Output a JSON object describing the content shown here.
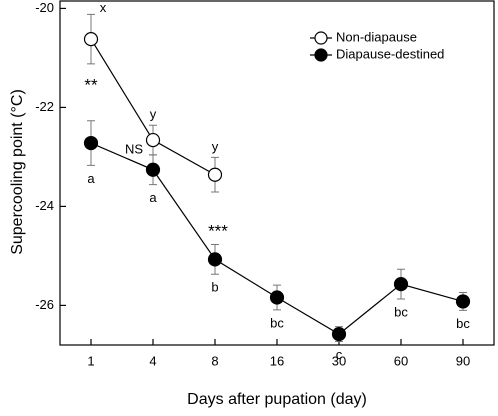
{
  "chart_data": {
    "type": "line",
    "x_label": "Days after pupation (day)",
    "y_label": "Supercooling point (°C)",
    "categories": [
      "1",
      "4",
      "8",
      "16",
      "30",
      "60",
      "90"
    ],
    "series": [
      {
        "name": "Non-diapause",
        "color": "#ffffff",
        "values": [
          -20.62,
          -22.66,
          -23.36,
          null,
          null,
          null,
          null
        ],
        "errors": [
          0.5,
          0.3,
          0.35,
          null,
          null,
          null,
          null
        ],
        "labels": [
          "x",
          "y",
          "y",
          null,
          null,
          null,
          null
        ]
      },
      {
        "name": "Diapause-destined",
        "color": "#000000",
        "values": [
          -22.72,
          -23.26,
          -25.07,
          -25.84,
          -26.58,
          -25.57,
          -25.92
        ],
        "errors": [
          0.45,
          0.3,
          0.3,
          0.25,
          0.15,
          0.3,
          0.18
        ],
        "labels": [
          "a",
          "a",
          "b",
          "bc",
          "c",
          "bc",
          "bc"
        ]
      }
    ],
    "comparisons": [
      "**",
      "NS",
      "***",
      null,
      null,
      null,
      null
    ],
    "ylim": [
      -26.8,
      -19.85
    ],
    "yticks": [
      -20,
      -22,
      -24,
      -26
    ],
    "legend": "upper right"
  }
}
